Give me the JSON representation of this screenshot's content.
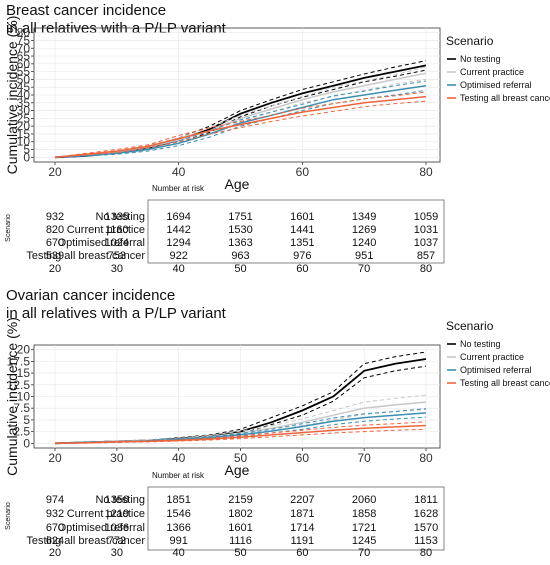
{
  "chart_data": [
    {
      "type": "line",
      "title": "Breast cancer incidence\nin all relatives with a P/LP variant",
      "xlabel": "Age",
      "ylabel": "Cumulative incidence (%)",
      "xlim": [
        17,
        82
      ],
      "ylim": [
        -3,
        83
      ],
      "xticks": [
        20,
        40,
        60,
        80
      ],
      "yticks": [
        0,
        5,
        10,
        15,
        20,
        25,
        30,
        35,
        40,
        45,
        50,
        55,
        60,
        65,
        70,
        75,
        80
      ],
      "grid": true,
      "legend_title": "Scenario",
      "legend_position": "right",
      "series": [
        {
          "name": "No testing",
          "color": "#000000",
          "x": [
            20,
            25,
            30,
            35,
            40,
            45,
            50,
            55,
            60,
            65,
            70,
            75,
            80
          ],
          "y": [
            0,
            1,
            3,
            6,
            11,
            18,
            28,
            35,
            41,
            46,
            51,
            55,
            59
          ],
          "ci_low": [
            0,
            0.8,
            2.5,
            5,
            9.5,
            16,
            26,
            33,
            38.5,
            43.5,
            48.5,
            52,
            56
          ],
          "ci_high": [
            0,
            1.2,
            3.5,
            7,
            12.5,
            20,
            30,
            37,
            43.5,
            48.5,
            53.5,
            58,
            62
          ]
        },
        {
          "name": "Current practice",
          "color": "#c8c8c8",
          "x": [
            20,
            25,
            30,
            35,
            40,
            45,
            50,
            55,
            60,
            65,
            70,
            75,
            80
          ],
          "y": [
            0,
            1.5,
            3.5,
            6.5,
            11,
            17,
            25,
            31,
            37,
            42,
            46,
            50,
            54
          ],
          "ci_low": [
            0,
            1,
            3,
            5.5,
            9.5,
            15,
            23,
            29,
            35,
            39,
            43,
            47,
            50
          ],
          "ci_high": [
            0,
            2,
            4,
            7.5,
            12.5,
            19,
            27,
            33,
            39,
            45,
            49,
            53,
            58
          ]
        },
        {
          "name": "Optimised referral",
          "color": "#3b8fb3",
          "x": [
            20,
            25,
            30,
            35,
            40,
            45,
            50,
            55,
            60,
            65,
            70,
            75,
            80
          ],
          "y": [
            0,
            1,
            2.5,
            5,
            9,
            15,
            22,
            27,
            32,
            37,
            40,
            43,
            46
          ],
          "ci_low": [
            0,
            0.8,
            2,
            4,
            7.5,
            13,
            20,
            25,
            30,
            34.5,
            37.5,
            40,
            43
          ],
          "ci_high": [
            0,
            1.2,
            3,
            6,
            10.5,
            17,
            24,
            29,
            34,
            39.5,
            42.5,
            46,
            49
          ]
        },
        {
          "name": "Testing all breast cancer",
          "color": "#f0643c",
          "x": [
            20,
            25,
            30,
            35,
            40,
            45,
            50,
            55,
            60,
            65,
            70,
            75,
            80
          ],
          "y": [
            0,
            2,
            4,
            7,
            12,
            17,
            21,
            25,
            29,
            32,
            35,
            37,
            39
          ],
          "ci_low": [
            0,
            1.5,
            3,
            6,
            10,
            15,
            19,
            23,
            26.5,
            29.5,
            32.5,
            34.5,
            36
          ],
          "ci_high": [
            0,
            2.5,
            5,
            8,
            14,
            19,
            23,
            27,
            31.5,
            34.5,
            37.5,
            39.5,
            42
          ]
        }
      ]
    },
    {
      "type": "line",
      "title": "Ovarian cancer incidence\nin all relatives with a P/LP variant",
      "xlabel": "Age",
      "ylabel": "Cumulative incidence (%)",
      "xlim": [
        17,
        82
      ],
      "ylim": [
        -1,
        21
      ],
      "xticks": [
        20,
        30,
        40,
        50,
        60,
        70,
        80
      ],
      "yticks": [
        0,
        2.5,
        5,
        7.5,
        10,
        12.5,
        15,
        17.5,
        20
      ],
      "grid": true,
      "legend_title": "Scenario",
      "legend_position": "right",
      "series": [
        {
          "name": "No testing",
          "color": "#000000",
          "x": [
            20,
            25,
            30,
            35,
            40,
            45,
            50,
            55,
            60,
            65,
            70,
            75,
            80
          ],
          "y": [
            0,
            0.2,
            0.4,
            0.6,
            1,
            1.5,
            2.5,
            4.5,
            7,
            10,
            15.5,
            17,
            18
          ],
          "ci_low": [
            0,
            0.1,
            0.3,
            0.5,
            0.8,
            1.2,
            2,
            4,
            6,
            9,
            14,
            15.5,
            16.5
          ],
          "ci_high": [
            0,
            0.3,
            0.5,
            0.7,
            1.2,
            1.8,
            3,
            5.5,
            8,
            11,
            17,
            18.5,
            19.5
          ]
        },
        {
          "name": "Current practice",
          "color": "#c8c8c8",
          "x": [
            20,
            25,
            30,
            35,
            40,
            45,
            50,
            55,
            60,
            65,
            70,
            75,
            80
          ],
          "y": [
            0,
            0.2,
            0.4,
            0.6,
            0.9,
            1.4,
            2.2,
            3.2,
            4.5,
            6,
            7.5,
            8.2,
            8.8
          ],
          "ci_low": [
            0,
            0.1,
            0.3,
            0.5,
            0.7,
            1.1,
            1.8,
            2.7,
            3.8,
            5,
            6.2,
            6.8,
            7.2
          ],
          "ci_high": [
            0,
            0.3,
            0.5,
            0.7,
            1.1,
            1.7,
            2.6,
            3.7,
            5.2,
            7,
            8.8,
            9.6,
            10.3
          ]
        },
        {
          "name": "Optimised referral",
          "color": "#3b8fb3",
          "x": [
            20,
            25,
            30,
            35,
            40,
            45,
            50,
            55,
            60,
            65,
            70,
            75,
            80
          ],
          "y": [
            0,
            0.2,
            0.3,
            0.5,
            0.8,
            1.2,
            1.8,
            2.6,
            3.6,
            4.7,
            5.5,
            6,
            6.5
          ],
          "ci_low": [
            0,
            0.1,
            0.2,
            0.4,
            0.6,
            1,
            1.5,
            2.2,
            3,
            4,
            4.7,
            5.2,
            5.6
          ],
          "ci_high": [
            0,
            0.3,
            0.4,
            0.6,
            1,
            1.4,
            2.1,
            3,
            4.2,
            5.4,
            6.3,
            6.8,
            7.4
          ]
        },
        {
          "name": "Testing all breast cancer",
          "color": "#f0643c",
          "x": [
            20,
            25,
            30,
            35,
            40,
            45,
            50,
            55,
            60,
            65,
            70,
            75,
            80
          ],
          "y": [
            0,
            0.1,
            0.3,
            0.4,
            0.6,
            0.9,
            1.3,
            1.8,
            2.3,
            2.8,
            3.2,
            3.5,
            3.8
          ],
          "ci_low": [
            0,
            0.05,
            0.2,
            0.3,
            0.5,
            0.7,
            1,
            1.4,
            1.8,
            2.2,
            2.5,
            2.8,
            3
          ],
          "ci_high": [
            0,
            0.15,
            0.4,
            0.5,
            0.7,
            1.1,
            1.6,
            2.2,
            2.8,
            3.4,
            3.9,
            4.2,
            4.6
          ]
        }
      ]
    }
  ],
  "risk_tables": [
    {
      "heading": "Number at risk",
      "side_label": "Scenario",
      "ages": [
        "20",
        "30",
        "40",
        "50",
        "60",
        "70",
        "80"
      ],
      "rows": [
        {
          "label": "No testing",
          "values": [
            "932",
            "1335",
            "1694",
            "1751",
            "1601",
            "1349",
            "1059"
          ]
        },
        {
          "label": "Current practice",
          "values": [
            "820",
            "1160",
            "1442",
            "1530",
            "1441",
            "1269",
            "1031"
          ]
        },
        {
          "label": "Optimised referral",
          "values": [
            "670",
            "1024",
            "1294",
            "1363",
            "1351",
            "1240",
            "1037"
          ]
        },
        {
          "label": "Testing all breast cancer",
          "values": [
            "539",
            "753",
            "922",
            "963",
            "976",
            "951",
            "857"
          ]
        }
      ]
    },
    {
      "heading": "Number at risk",
      "side_label": "Scenario",
      "ages": [
        "20",
        "30",
        "40",
        "50",
        "60",
        "70",
        "80"
      ],
      "rows": [
        {
          "label": "No testing",
          "values": [
            "974",
            "1356",
            "1851",
            "2159",
            "2207",
            "2060",
            "1811"
          ]
        },
        {
          "label": "Current practice",
          "values": [
            "932",
            "1219",
            "1546",
            "1802",
            "1871",
            "1858",
            "1628"
          ]
        },
        {
          "label": "Optimised referral",
          "values": [
            "670",
            "1036",
            "1366",
            "1601",
            "1714",
            "1721",
            "1570"
          ]
        },
        {
          "label": "Testing all breast cancer",
          "values": [
            "624",
            "772",
            "991",
            "1116",
            "1191",
            "1245",
            "1153"
          ]
        }
      ]
    }
  ]
}
